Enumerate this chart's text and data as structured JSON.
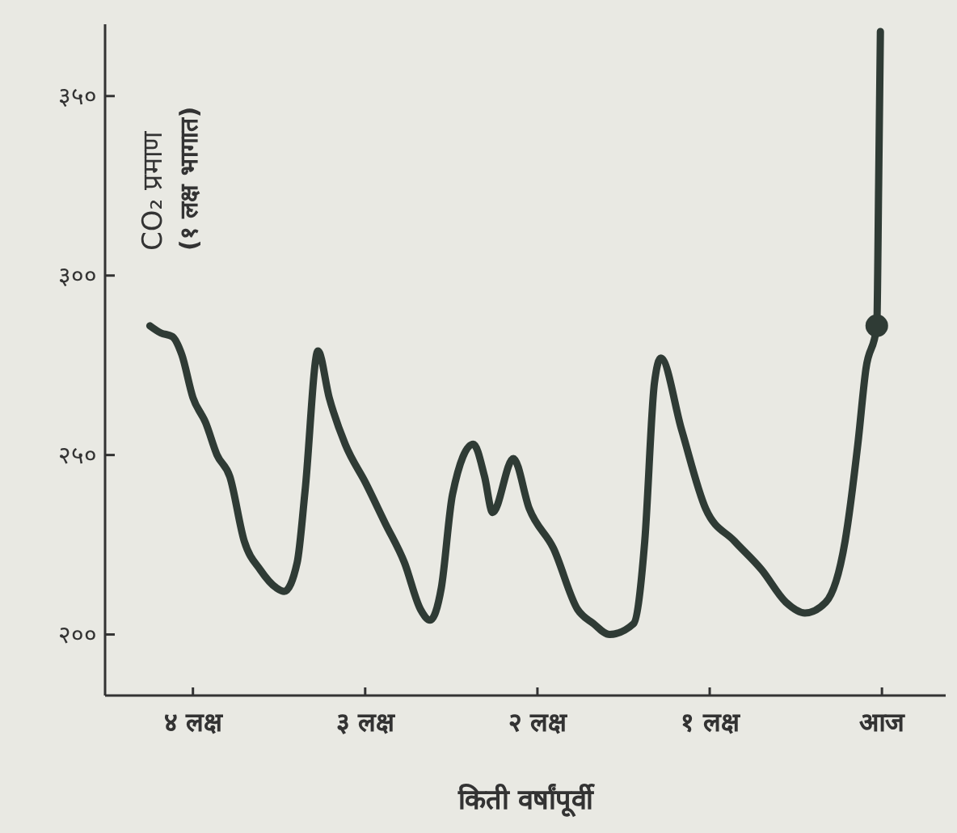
{
  "chart_data": {
    "type": "line",
    "xlabel": "किती वर्षांपूर्वी",
    "ylabel": "CO₂ प्रमाण (१ लक्ष भागात)",
    "xlim": [
      4.51,
      -0.37
    ],
    "ylim": [
      183,
      370
    ],
    "xticks": [
      {
        "value": 4,
        "label": "४ लक्ष"
      },
      {
        "value": 3,
        "label": "३ लक्ष"
      },
      {
        "value": 2,
        "label": "२ लक्ष"
      },
      {
        "value": 1,
        "label": "१ लक्ष"
      },
      {
        "value": 0,
        "label": "आज"
      }
    ],
    "yticks": [
      {
        "value": 200,
        "label": "२००"
      },
      {
        "value": 250,
        "label": "२५०"
      },
      {
        "value": 300,
        "label": "३००"
      },
      {
        "value": 350,
        "label": "३५०"
      }
    ],
    "grid": false,
    "marker": "none",
    "line_style": "solid",
    "series": [
      {
        "color": "#2f3b35",
        "x": [
          4.25,
          4.186,
          4.12,
          4.065,
          4.0,
          3.926,
          3.86,
          3.786,
          3.702,
          3.609,
          3.516,
          3.47,
          3.395,
          3.349,
          3.274,
          3.209,
          3.116,
          2.995,
          2.884,
          2.772,
          2.679,
          2.623,
          2.558,
          2.493,
          2.372,
          2.307,
          2.26,
          2.14,
          2.047,
          1.907,
          1.767,
          1.674,
          1.581,
          1.442,
          1.377,
          1.321,
          1.284,
          1.163,
          1.023,
          0.856,
          0.698,
          0.558,
          0.447,
          0.326,
          0.214,
          0.14,
          0.093,
          0.03,
          0.019,
          0.009
        ],
        "values": [
          286,
          284,
          283,
          278,
          266,
          259,
          250,
          244,
          226,
          218,
          213,
          212,
          220,
          240,
          279,
          266,
          253,
          242,
          231,
          220,
          207,
          204,
          213,
          239,
          253,
          244,
          234,
          249,
          235,
          224,
          207,
          203,
          200,
          203,
          226,
          270,
          277,
          257,
          235,
          226,
          218,
          209,
          206,
          209,
          226,
          253,
          274,
          286,
          326,
          368
        ]
      },
      {
        "type": "scatter",
        "marker": "circle",
        "color": "#2f3b35",
        "x": [
          0.03
        ],
        "values": [
          286
        ]
      }
    ]
  }
}
